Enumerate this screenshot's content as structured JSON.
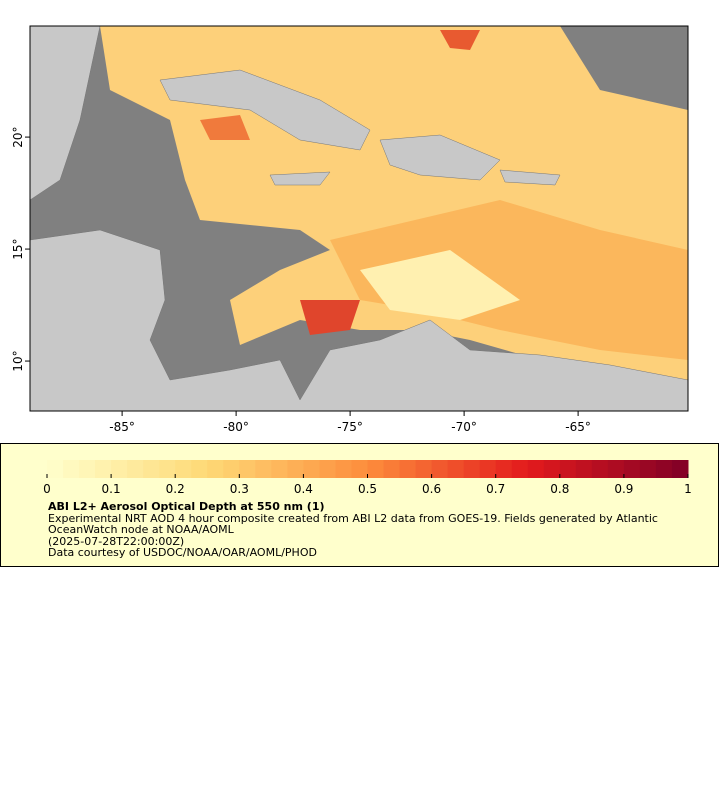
{
  "map": {
    "lonlim": [
      -89.04,
      -60.18
    ],
    "latlim": [
      7.77,
      24.96
    ],
    "lon_ticks": [
      {
        "value": -85,
        "label": "-85°"
      },
      {
        "value": -80,
        "label": "-80°"
      },
      {
        "value": -75,
        "label": "-75°"
      },
      {
        "value": -70,
        "label": "-70°"
      },
      {
        "value": -65,
        "label": "-65°"
      }
    ],
    "lat_ticks": [
      {
        "value": 10,
        "label": "10°"
      },
      {
        "value": 15,
        "label": "15°"
      },
      {
        "value": 20,
        "label": "20°"
      }
    ]
  },
  "colorbar": {
    "lim": [
      0,
      1
    ],
    "ticks": [
      0,
      0.1,
      0.2,
      0.3,
      0.4,
      0.5,
      0.6,
      0.7,
      0.8,
      0.9,
      1
    ],
    "title": "ABI L2+ Aerosol Optical Depth at 550 nm (1)",
    "notes": [
      "Experimental NRT AOD 4 hour composite created from ABI L2 data from GOES-19. Fields generated by Atlantic",
      "OceanWatch node at NOAA/AOML",
      "(2025-07-28T22:00:00Z)",
      "Data courtesy of USDOC/NOAA/OAR/AOML/PHOD"
    ]
  }
}
